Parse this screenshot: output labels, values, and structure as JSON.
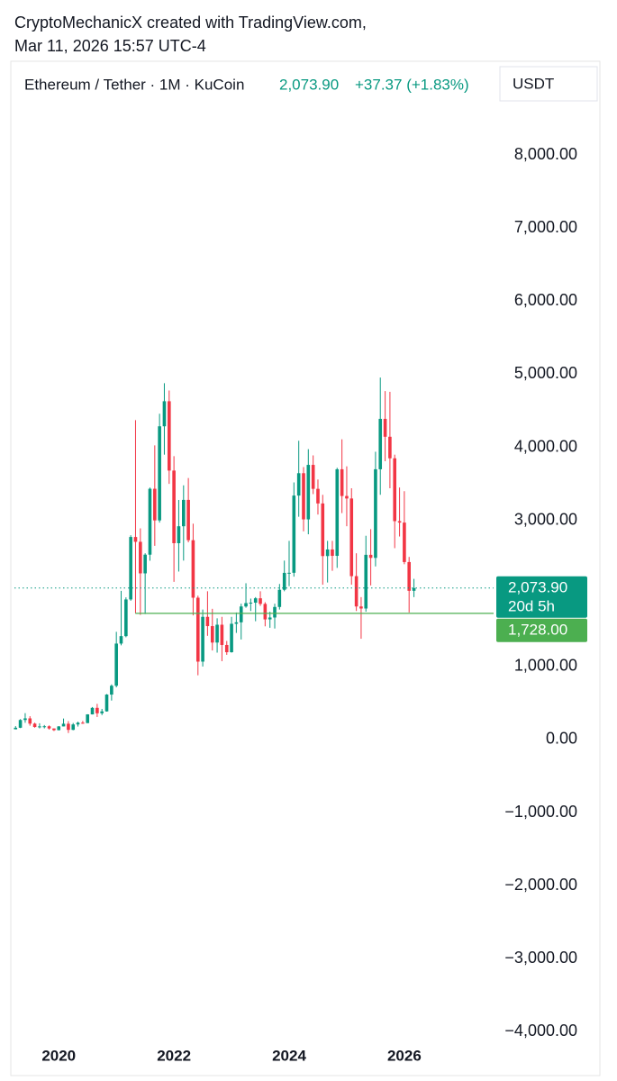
{
  "header": {
    "line1": "CryptoMechanicX created with TradingView.com,",
    "line2": "Mar 11, 2026 15:57 UTC-4",
    "symbol": "Ethereum / Tether · 1M · KuCoin",
    "price": "2,073.90",
    "change": "+37.37 (+1.83%)",
    "currency": "USDT"
  },
  "chart_data": {
    "type": "candlestick",
    "up_color": "#089981",
    "down_color": "#f23645",
    "x": [
      2019.25,
      2019.333,
      2019.417,
      2019.5,
      2019.583,
      2019.667,
      2019.75,
      2019.833,
      2019.917,
      2020,
      2020.083,
      2020.167,
      2020.25,
      2020.333,
      2020.417,
      2020.5,
      2020.583,
      2020.667,
      2020.75,
      2020.833,
      2020.917,
      2021,
      2021.083,
      2021.167,
      2021.25,
      2021.333,
      2021.417,
      2021.5,
      2021.583,
      2021.667,
      2021.75,
      2021.833,
      2021.917,
      2022,
      2022.083,
      2022.167,
      2022.25,
      2022.333,
      2022.417,
      2022.5,
      2022.583,
      2022.667,
      2022.75,
      2022.833,
      2022.917,
      2023,
      2023.083,
      2023.167,
      2023.25,
      2023.333,
      2023.417,
      2023.5,
      2023.583,
      2023.667,
      2023.75,
      2023.833,
      2023.917,
      2024,
      2024.083,
      2024.167,
      2024.25,
      2024.333,
      2024.417,
      2024.5,
      2024.583,
      2024.667,
      2024.75,
      2024.833,
      2024.917,
      2025,
      2025.083,
      2025.167,
      2025.25,
      2025.333,
      2025.417,
      2025.5,
      2025.583,
      2025.667,
      2025.75,
      2025.833,
      2025.917,
      2026,
      2026.083,
      2026.167
    ],
    "open": [
      141,
      162,
      268,
      290,
      218,
      172,
      180,
      182,
      152,
      129,
      180,
      217,
      133,
      207,
      231,
      226,
      345,
      434,
      360,
      386,
      616,
      737,
      1314,
      1416,
      1918,
      2773,
      2707,
      2275,
      2531,
      3433,
      3000,
      4288,
      4631,
      3682,
      2688,
      2920,
      3281,
      2729,
      1942,
      1067,
      1680,
      1553,
      1328,
      1572,
      1295,
      1196,
      1585,
      1605,
      1822,
      1868,
      1874,
      1934,
      1857,
      1645,
      1671,
      1815,
      2050,
      2282,
      2283,
      3340,
      3646,
      3014,
      3760,
      3432,
      3232,
      2512,
      2602,
      2515,
      3700,
      3334,
      3300,
      2237,
      1822,
      1794,
      2529,
      2487,
      3700,
      4390,
      4145,
      3850,
      2990,
      2970,
      2430,
      2036.53
    ],
    "high": [
      184,
      280,
      362,
      320,
      231,
      223,
      199,
      194,
      153,
      185,
      288,
      253,
      227,
      245,
      255,
      347,
      445,
      489,
      420,
      623,
      755,
      1475,
      2036,
      1947,
      2797,
      4372,
      2891,
      2550,
      3450,
      4027,
      4460,
      4878,
      4778,
      3880,
      3280,
      3480,
      3580,
      2955,
      1970,
      1780,
      2030,
      1790,
      1660,
      1680,
      1350,
      1680,
      1740,
      1860,
      2140,
      1930,
      1950,
      2030,
      1880,
      1750,
      1860,
      2130,
      2450,
      2720,
      3520,
      4090,
      3730,
      3975,
      3890,
      3560,
      3350,
      2720,
      2720,
      3720,
      4110,
      3740,
      3440,
      2550,
      1950,
      2790,
      2880,
      3940,
      4955,
      4770,
      4760,
      3900,
      3450,
      3400,
      2500,
      2200
    ],
    "low": [
      140,
      157,
      230,
      190,
      163,
      153,
      153,
      137,
      117,
      126,
      180,
      90,
      128,
      178,
      215,
      225,
      344,
      309,
      335,
      383,
      534,
      715,
      1290,
      1400,
      1900,
      1730,
      1707,
      1718,
      2448,
      2652,
      2970,
      3900,
      3500,
      2159,
      2300,
      2450,
      2700,
      1700,
      880,
      1000,
      1420,
      1220,
      1190,
      1073,
      1160,
      1190,
      1460,
      1370,
      1805,
      1760,
      1620,
      1830,
      1550,
      1530,
      1520,
      1780,
      2030,
      2100,
      2230,
      3050,
      2850,
      2810,
      3360,
      3080,
      2120,
      2150,
      2310,
      2350,
      3100,
      2920,
      2120,
      1760,
      1380,
      1750,
      2110,
      2370,
      3350,
      3810,
      3440,
      2620,
      2780,
      2400,
      1740,
      1950
    ],
    "close": [
      162,
      268,
      290,
      218,
      172,
      180,
      182,
      152,
      129,
      180,
      217,
      133,
      207,
      231,
      226,
      345,
      434,
      360,
      386,
      616,
      737,
      1314,
      1416,
      1918,
      2773,
      2707,
      2275,
      2531,
      3433,
      3000,
      4288,
      4631,
      3682,
      2688,
      2920,
      3281,
      2729,
      1942,
      1067,
      1680,
      1553,
      1328,
      1572,
      1295,
      1196,
      1585,
      1605,
      1822,
      1868,
      1874,
      1934,
      1857,
      1645,
      1671,
      1815,
      2050,
      2282,
      2283,
      3340,
      3646,
      3014,
      3760,
      3432,
      3232,
      2512,
      2602,
      2515,
      3700,
      3334,
      3300,
      2237,
      1822,
      1794,
      2529,
      2487,
      3700,
      4390,
      4145,
      3850,
      2990,
      2970,
      2430,
      2036.53,
      2073.9
    ],
    "xlim": [
      2019.23,
      2027.55
    ],
    "xticks": [
      2020,
      2022,
      2024,
      2026
    ],
    "ylim": [
      -4180,
      8705
    ],
    "yticks": [
      {
        "value": -4000,
        "label": "−4,000.00"
      },
      {
        "value": -3000,
        "label": "−3,000.00"
      },
      {
        "value": -2000,
        "label": "−2,000.00"
      },
      {
        "value": -1000,
        "label": "−1,000.00"
      },
      {
        "value": 0,
        "label": "0.00"
      },
      {
        "value": 1000,
        "label": "1,000.00"
      },
      {
        "value": 2000,
        "label": "2,000.00"
      },
      {
        "value": 3000,
        "label": "3,000.00"
      },
      {
        "value": 4000,
        "label": "4,000.00"
      },
      {
        "value": 5000,
        "label": "5,000.00"
      },
      {
        "value": 6000,
        "label": "6,000.00"
      },
      {
        "value": 7000,
        "label": "7,000.00"
      },
      {
        "value": 8000,
        "label": "8,000.00"
      }
    ],
    "price_line": {
      "value": 2073.9,
      "label": "2,073.90",
      "countdown": "20d 5h",
      "color": "#089981"
    },
    "support_line": {
      "value": 1728,
      "label": "1,728.00",
      "x_start": 2021.33,
      "color": "#4caf50"
    }
  }
}
